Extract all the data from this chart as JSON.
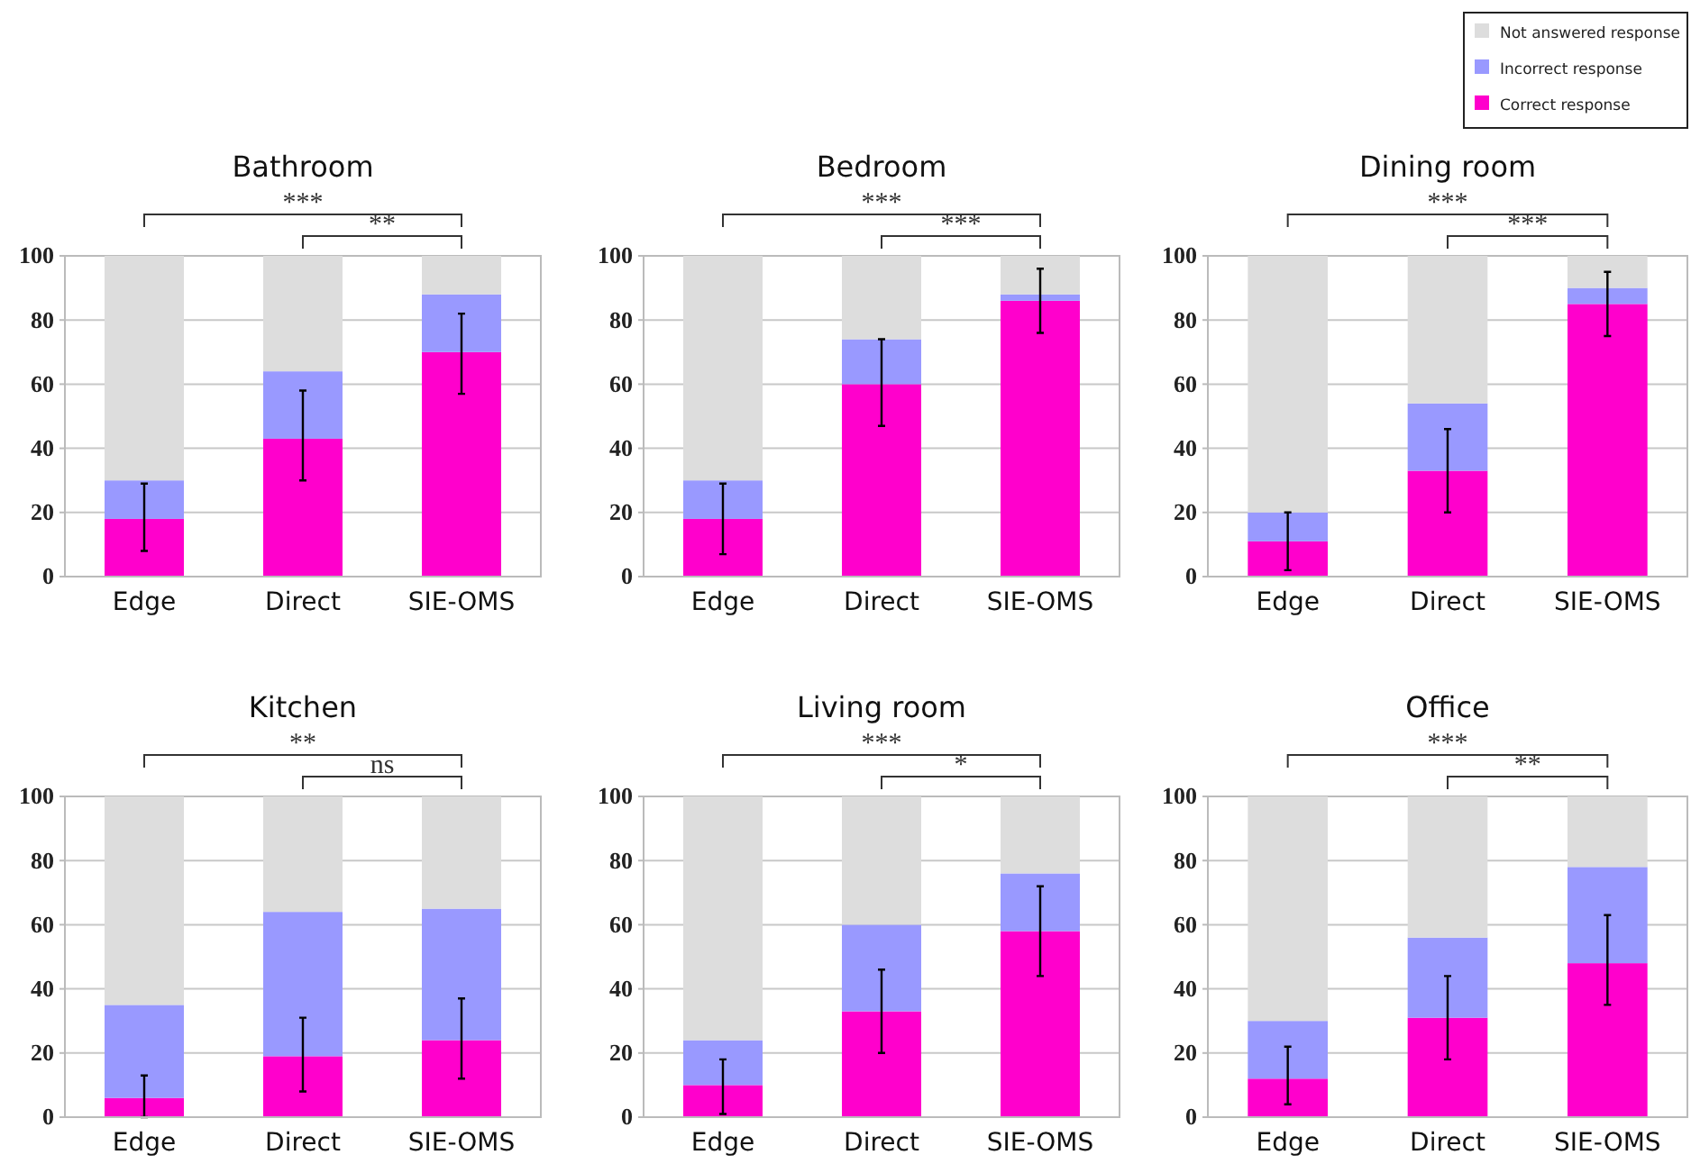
{
  "chart_data": [
    {
      "type": "bar",
      "title": "Bathroom",
      "categories": [
        "Edge",
        "Direct",
        "SIE-OMS"
      ],
      "stacked": true,
      "ylim": [
        0,
        100
      ],
      "yticks": [
        0,
        20,
        40,
        60,
        80,
        100
      ],
      "grid": "y",
      "annotations": [
        "***",
        "**"
      ],
      "series": [
        {
          "color": "#ff00cc",
          "values": [
            18,
            43,
            70
          ],
          "errors": [
            [
              8,
              29
            ],
            [
              30,
              58
            ],
            [
              57,
              82
            ]
          ]
        },
        {
          "color": "#9999ff",
          "values": [
            12,
            21,
            18
          ]
        },
        {
          "color": "#dddddd",
          "values": [
            70,
            36,
            12
          ]
        }
      ]
    },
    {
      "type": "bar",
      "title": "Bedroom",
      "categories": [
        "Edge",
        "Direct",
        "SIE-OMS"
      ],
      "stacked": true,
      "ylim": [
        0,
        100
      ],
      "yticks": [
        0,
        20,
        40,
        60,
        80,
        100
      ],
      "grid": "y",
      "annotations": [
        "***",
        "***"
      ],
      "series": [
        {
          "color": "#ff00cc",
          "values": [
            18,
            60,
            86
          ],
          "errors": [
            [
              7,
              29
            ],
            [
              47,
              74
            ],
            [
              76,
              96
            ]
          ]
        },
        {
          "color": "#9999ff",
          "values": [
            12,
            14,
            2
          ]
        },
        {
          "color": "#dddddd",
          "values": [
            70,
            26,
            12
          ]
        }
      ]
    },
    {
      "type": "bar",
      "title": "Dining room",
      "categories": [
        "Edge",
        "Direct",
        "SIE-OMS"
      ],
      "stacked": true,
      "ylim": [
        0,
        100
      ],
      "yticks": [
        0,
        20,
        40,
        60,
        80,
        100
      ],
      "grid": "y",
      "legend": "top right",
      "annotations": [
        "***",
        "***"
      ],
      "series": [
        {
          "name": "Correct response",
          "color": "#ff00cc",
          "values": [
            11,
            33,
            85
          ],
          "errors": [
            [
              2,
              20
            ],
            [
              20,
              46
            ],
            [
              75,
              95
            ]
          ]
        },
        {
          "name": "Incorrect response",
          "color": "#9999ff",
          "values": [
            9,
            21,
            5
          ]
        },
        {
          "name": "Not answered response",
          "color": "#dddddd",
          "values": [
            80,
            46,
            10
          ]
        }
      ]
    },
    {
      "type": "bar",
      "title": "Kitchen",
      "categories": [
        "Edge",
        "Direct",
        "SIE-OMS"
      ],
      "stacked": true,
      "ylim": [
        0,
        100
      ],
      "yticks": [
        0,
        20,
        40,
        60,
        80,
        100
      ],
      "grid": "y",
      "annotations": [
        "**",
        "ns"
      ],
      "series": [
        {
          "color": "#ff00cc",
          "values": [
            6,
            19,
            24
          ],
          "errors": [
            [
              0,
              13
            ],
            [
              8,
              31
            ],
            [
              12,
              37
            ]
          ]
        },
        {
          "color": "#9999ff",
          "values": [
            29,
            45,
            41
          ]
        },
        {
          "color": "#dddddd",
          "values": [
            65,
            36,
            35
          ]
        }
      ]
    },
    {
      "type": "bar",
      "title": "Living room",
      "categories": [
        "Edge",
        "Direct",
        "SIE-OMS"
      ],
      "stacked": true,
      "ylim": [
        0,
        100
      ],
      "yticks": [
        0,
        20,
        40,
        60,
        80,
        100
      ],
      "grid": "y",
      "annotations": [
        "***",
        "*"
      ],
      "series": [
        {
          "color": "#ff00cc",
          "values": [
            10,
            33,
            58
          ],
          "errors": [
            [
              1,
              18
            ],
            [
              20,
              46
            ],
            [
              44,
              72
            ]
          ]
        },
        {
          "color": "#9999ff",
          "values": [
            14,
            27,
            18
          ]
        },
        {
          "color": "#dddddd",
          "values": [
            76,
            40,
            24
          ]
        }
      ]
    },
    {
      "type": "bar",
      "title": "Office",
      "categories": [
        "Edge",
        "Direct",
        "SIE-OMS"
      ],
      "stacked": true,
      "ylim": [
        0,
        100
      ],
      "yticks": [
        0,
        20,
        40,
        60,
        80,
        100
      ],
      "grid": "y",
      "annotations": [
        "***",
        "**"
      ],
      "series": [
        {
          "color": "#ff00cc",
          "values": [
            12,
            31,
            48
          ],
          "errors": [
            [
              4,
              22
            ],
            [
              18,
              44
            ],
            [
              35,
              63
            ]
          ]
        },
        {
          "color": "#9999ff",
          "values": [
            18,
            25,
            30
          ]
        },
        {
          "color": "#dddddd",
          "values": [
            70,
            44,
            22
          ]
        }
      ]
    }
  ]
}
